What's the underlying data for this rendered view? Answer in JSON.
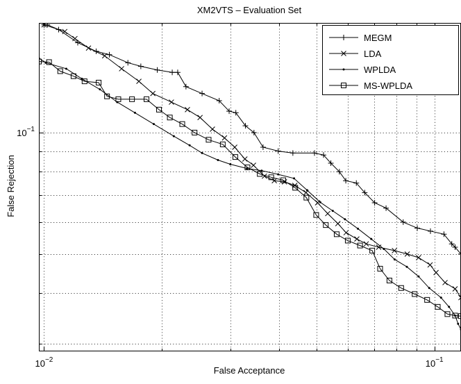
{
  "chart_data": {
    "type": "line",
    "title": "XM2VTS – Evaluation Set",
    "xlabel": "False Acceptance",
    "ylabel": "False Rejection",
    "xscale": "log",
    "yscale": "log",
    "xlim": [
      0.0097,
      0.117
    ],
    "ylim": [
      0.0287,
      0.187
    ],
    "x_ticks": [
      {
        "value": 0.01,
        "base": "10",
        "exp": "−2"
      },
      {
        "value": 0.1,
        "base": "10",
        "exp": "−1"
      }
    ],
    "y_ticks": [
      {
        "value": 0.1,
        "base": "10",
        "exp": "−1"
      }
    ],
    "grid": true,
    "legend_position": "top-right",
    "series": [
      {
        "name": "MEGM",
        "marker": "plus",
        "points": [
          [
            0.01,
            0.185
          ],
          [
            0.0102,
            0.185
          ],
          [
            0.0109,
            0.18
          ],
          [
            0.0122,
            0.167
          ],
          [
            0.0136,
            0.159
          ],
          [
            0.0147,
            0.156
          ],
          [
            0.0164,
            0.149
          ],
          [
            0.0177,
            0.146
          ],
          [
            0.0195,
            0.143
          ],
          [
            0.0213,
            0.141
          ],
          [
            0.022,
            0.141
          ],
          [
            0.0231,
            0.13
          ],
          [
            0.0254,
            0.125
          ],
          [
            0.0281,
            0.12
          ],
          [
            0.0298,
            0.113
          ],
          [
            0.031,
            0.112
          ],
          [
            0.0328,
            0.104
          ],
          [
            0.0345,
            0.1
          ],
          [
            0.0364,
            0.092
          ],
          [
            0.0398,
            0.09
          ],
          [
            0.0434,
            0.089
          ],
          [
            0.0493,
            0.089
          ],
          [
            0.052,
            0.088
          ],
          [
            0.0543,
            0.084
          ],
          [
            0.0571,
            0.08
          ],
          [
            0.0593,
            0.076
          ],
          [
            0.0631,
            0.075
          ],
          [
            0.0663,
            0.071
          ],
          [
            0.0703,
            0.067
          ],
          [
            0.0752,
            0.065
          ],
          [
            0.0832,
            0.06
          ],
          [
            0.0904,
            0.058
          ],
          [
            0.0977,
            0.057
          ],
          [
            0.1058,
            0.056
          ],
          [
            0.1108,
            0.053
          ],
          [
            0.113,
            0.052
          ],
          [
            0.117,
            0.05
          ]
        ]
      },
      {
        "name": "LDA",
        "marker": "x",
        "points": [
          [
            0.01,
            0.185
          ],
          [
            0.0113,
            0.178
          ],
          [
            0.012,
            0.171
          ],
          [
            0.013,
            0.162
          ],
          [
            0.0143,
            0.155
          ],
          [
            0.0158,
            0.144
          ],
          [
            0.0175,
            0.134
          ],
          [
            0.019,
            0.125
          ],
          [
            0.0212,
            0.119
          ],
          [
            0.0233,
            0.114
          ],
          [
            0.0251,
            0.109
          ],
          [
            0.027,
            0.102
          ],
          [
            0.029,
            0.097
          ],
          [
            0.0308,
            0.092
          ],
          [
            0.0327,
            0.086
          ],
          [
            0.0344,
            0.083
          ],
          [
            0.0367,
            0.078
          ],
          [
            0.0389,
            0.076
          ],
          [
            0.0413,
            0.0755
          ],
          [
            0.0439,
            0.074
          ],
          [
            0.0469,
            0.071
          ],
          [
            0.0502,
            0.067
          ],
          [
            0.0533,
            0.063
          ],
          [
            0.0566,
            0.0595
          ],
          [
            0.0594,
            0.0565
          ],
          [
            0.0633,
            0.0545
          ],
          [
            0.0669,
            0.053
          ],
          [
            0.072,
            0.052
          ],
          [
            0.079,
            0.051
          ],
          [
            0.0852,
            0.05
          ],
          [
            0.0911,
            0.049
          ],
          [
            0.0975,
            0.047
          ],
          [
            0.101,
            0.045
          ],
          [
            0.1065,
            0.0425
          ],
          [
            0.113,
            0.041
          ],
          [
            0.117,
            0.039
          ]
        ]
      },
      {
        "name": "WPLDA",
        "marker": "dot",
        "points": [
          [
            0.0097,
            0.153
          ],
          [
            0.0101,
            0.149
          ],
          [
            0.0114,
            0.144
          ],
          [
            0.0125,
            0.136
          ],
          [
            0.0139,
            0.128
          ],
          [
            0.0154,
            0.119
          ],
          [
            0.0171,
            0.112
          ],
          [
            0.0191,
            0.105
          ],
          [
            0.0215,
            0.098
          ],
          [
            0.0236,
            0.093
          ],
          [
            0.0254,
            0.089
          ],
          [
            0.0279,
            0.0855
          ],
          [
            0.03,
            0.0835
          ],
          [
            0.0331,
            0.0815
          ],
          [
            0.0361,
            0.0805
          ],
          [
            0.0398,
            0.0788
          ],
          [
            0.0437,
            0.077
          ],
          [
            0.0472,
            0.072
          ],
          [
            0.051,
            0.0672
          ],
          [
            0.0549,
            0.064
          ],
          [
            0.059,
            0.061
          ],
          [
            0.0637,
            0.0578
          ],
          [
            0.0689,
            0.0545
          ],
          [
            0.0742,
            0.0515
          ],
          [
            0.0791,
            0.0485
          ],
          [
            0.085,
            0.0465
          ],
          [
            0.0911,
            0.044
          ],
          [
            0.097,
            0.0412
          ],
          [
            0.104,
            0.039
          ],
          [
            0.109,
            0.037
          ],
          [
            0.113,
            0.0352
          ],
          [
            0.115,
            0.0336
          ],
          [
            0.117,
            0.0325
          ]
        ]
      },
      {
        "name": "MS-WPLDA",
        "marker": "square",
        "points": [
          [
            0.0097,
            0.15
          ],
          [
            0.0103,
            0.1495
          ],
          [
            0.011,
            0.142
          ],
          [
            0.0119,
            0.138
          ],
          [
            0.0127,
            0.134
          ],
          [
            0.0138,
            0.133
          ],
          [
            0.0145,
            0.123
          ],
          [
            0.0155,
            0.121
          ],
          [
            0.0168,
            0.121
          ],
          [
            0.0183,
            0.121
          ],
          [
            0.0197,
            0.114
          ],
          [
            0.021,
            0.109
          ],
          [
            0.0226,
            0.105
          ],
          [
            0.0243,
            0.1
          ],
          [
            0.0264,
            0.096
          ],
          [
            0.0287,
            0.0935
          ],
          [
            0.0309,
            0.087
          ],
          [
            0.0332,
            0.082
          ],
          [
            0.0357,
            0.079
          ],
          [
            0.0382,
            0.0775
          ],
          [
            0.041,
            0.0762
          ],
          [
            0.044,
            0.073
          ],
          [
            0.047,
            0.069
          ],
          [
            0.0498,
            0.0625
          ],
          [
            0.0527,
            0.059
          ],
          [
            0.0562,
            0.056
          ],
          [
            0.06,
            0.054
          ],
          [
            0.0645,
            0.0525
          ],
          [
            0.0693,
            0.051
          ],
          [
            0.0726,
            0.046
          ],
          [
            0.0767,
            0.043
          ],
          [
            0.0822,
            0.0412
          ],
          [
            0.089,
            0.0398
          ],
          [
            0.0958,
            0.0385
          ],
          [
            0.102,
            0.037
          ],
          [
            0.108,
            0.0355
          ],
          [
            0.113,
            0.0352
          ],
          [
            0.117,
            0.0351
          ]
        ]
      }
    ]
  }
}
